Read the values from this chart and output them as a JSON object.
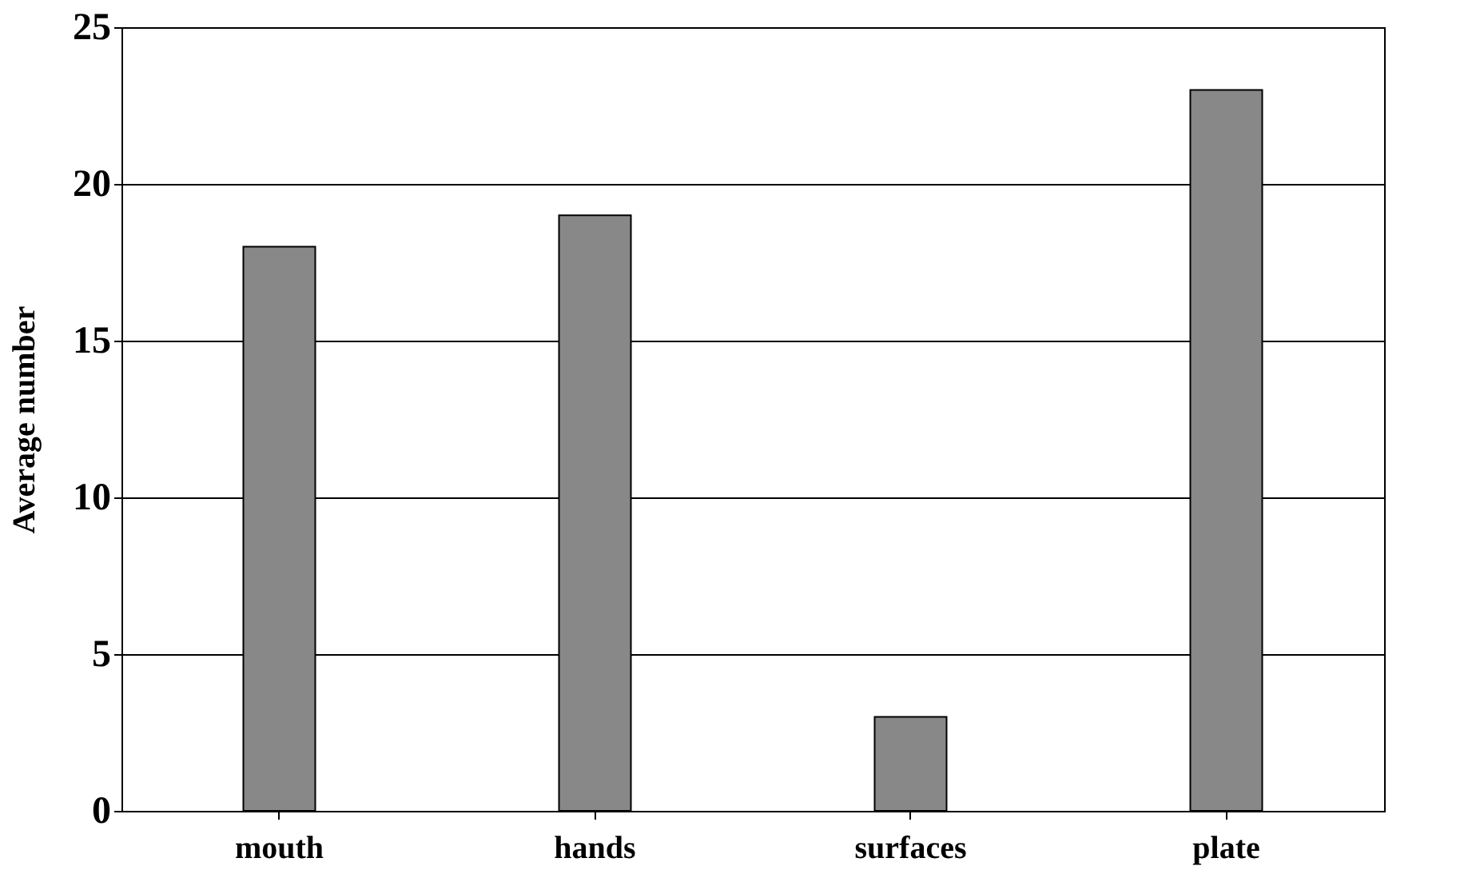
{
  "chart_data": {
    "type": "bar",
    "ylabel": "Average number",
    "categories": [
      "mouth",
      "hands",
      "surfaces",
      "plate"
    ],
    "values": [
      18,
      19,
      3,
      23
    ],
    "color": "#888888",
    "ylim": [
      0,
      25
    ],
    "yticks": [
      0,
      5,
      10,
      15,
      20,
      25
    ],
    "grid": "y"
  }
}
